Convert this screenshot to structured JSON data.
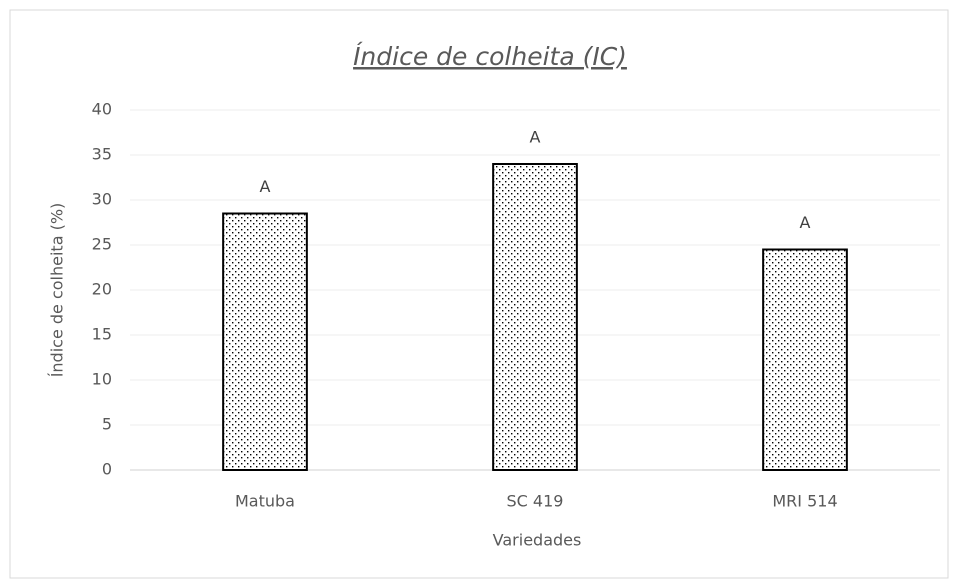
{
  "chart_data": {
    "type": "bar",
    "title": "Índice de colheita (IC)",
    "x_label": "Variedades",
    "y_label": "Índice de colheita (%)",
    "categories": [
      "Matuba",
      "SC 419",
      "MRI 514"
    ],
    "values": [
      28.5,
      34,
      24.5
    ],
    "annotations": [
      "A",
      "A",
      "A"
    ],
    "color": "#000000",
    "ylim": [
      0,
      40
    ],
    "yticks": [
      0,
      5,
      10,
      15,
      20,
      25,
      30,
      35,
      40
    ],
    "grid": true
  }
}
